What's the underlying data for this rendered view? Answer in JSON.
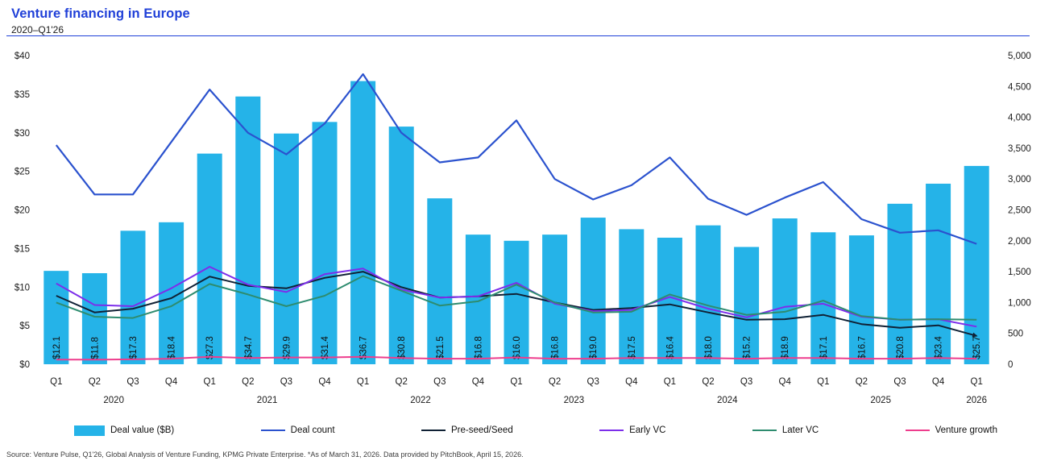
{
  "header": {
    "title": "Venture financing in Europe",
    "subtitle": "2020–Q1'26"
  },
  "source_note": "Source: Venture Pulse, Q1'26, Global Analysis of Venture Funding, KPMG Private Enterprise. *As of March 31, 2026. Data provided by PitchBook, April 15, 2026.",
  "colors": {
    "title_blue": "#2040d8",
    "bar_cyan": "#25b3e8",
    "deal_count_blue": "#2b52ce",
    "pre_seed_dark": "#102135",
    "early_vc_purple": "#7d2eea",
    "later_vc_teal": "#2e8c6f",
    "venture_growth_pink": "#ee3d8d",
    "axis_text": "#1a1a1a"
  },
  "chart_data": {
    "type": "bar+line combo",
    "title": "Venture financing in Europe",
    "subtitle": "2020–Q1'26",
    "categories": [
      "Q1",
      "Q2",
      "Q3",
      "Q4",
      "Q1",
      "Q2",
      "Q3",
      "Q4",
      "Q1",
      "Q2",
      "Q3",
      "Q4",
      "Q1",
      "Q2",
      "Q3",
      "Q4",
      "Q1",
      "Q2",
      "Q3",
      "Q4",
      "Q1",
      "Q2",
      "Q3",
      "Q4",
      "Q1"
    ],
    "year_groups": [
      {
        "label": "2020",
        "count": 4
      },
      {
        "label": "2021",
        "count": 4
      },
      {
        "label": "2022",
        "count": 4
      },
      {
        "label": "2023",
        "count": 4
      },
      {
        "label": "2024",
        "count": 4
      },
      {
        "label": "2025",
        "count": 4
      },
      {
        "label": "2026",
        "count": 1
      }
    ],
    "left_axis": {
      "min": 0,
      "max": 40,
      "ticks": [
        "$0",
        "$5",
        "$10",
        "$15",
        "$20",
        "$25",
        "$30",
        "$35",
        "$40"
      ]
    },
    "right_axis": {
      "min": 0,
      "max": 5000,
      "ticks": [
        "0",
        "500",
        "1,000",
        "1,500",
        "2,000",
        "2,500",
        "3,000",
        "3,500",
        "4,000",
        "4,500",
        "5,000"
      ]
    },
    "grid": false,
    "legend_position": "bottom",
    "bar_series": {
      "name": "Deal value ($B)",
      "axis": "left",
      "color": "#25b3e8",
      "values": [
        12.1,
        11.8,
        17.3,
        18.4,
        27.3,
        34.7,
        29.9,
        31.4,
        36.7,
        30.8,
        21.5,
        16.8,
        16.0,
        16.8,
        19.0,
        17.5,
        16.4,
        18.0,
        15.2,
        18.9,
        17.1,
        16.7,
        20.8,
        23.4,
        25.7
      ],
      "labels": [
        "$12.1",
        "$11.8",
        "$17.3",
        "$18.4",
        "$27.3",
        "$34.7",
        "$29.9",
        "$31.4",
        "$36.7",
        "$30.8",
        "$21.5",
        "$16.8",
        "$16.0",
        "$16.8",
        "$19.0",
        "$17.5",
        "$16.4",
        "$18.0",
        "$15.2",
        "$18.9",
        "$17.1",
        "$16.7",
        "$20.8",
        "$23.4",
        "$25.7"
      ]
    },
    "line_series": [
      {
        "name": "Deal count",
        "axis": "right",
        "color": "#2b52ce",
        "width": 2.2,
        "arrow_end": false,
        "values": [
          3550,
          2750,
          2750,
          3600,
          4450,
          3750,
          3400,
          3900,
          4700,
          3750,
          3270,
          3350,
          3950,
          3000,
          2670,
          2900,
          3350,
          2680,
          2420,
          2700,
          2950,
          2350,
          2130,
          2170,
          1950
        ]
      },
      {
        "name": "Pre-seed/Seed",
        "axis": "right",
        "color": "#102135",
        "width": 2,
        "arrow_end": true,
        "values": [
          1110,
          840,
          900,
          1070,
          1420,
          1270,
          1230,
          1400,
          1500,
          1250,
          1080,
          1100,
          1140,
          1000,
          880,
          910,
          970,
          840,
          720,
          730,
          800,
          650,
          590,
          630,
          460
        ]
      },
      {
        "name": "Early VC",
        "axis": "right",
        "color": "#7d2eea",
        "width": 2,
        "arrow_end": false,
        "values": [
          1310,
          960,
          940,
          1230,
          1580,
          1290,
          1170,
          1460,
          1550,
          1210,
          1080,
          1100,
          1320,
          980,
          860,
          880,
          1090,
          900,
          760,
          930,
          980,
          770,
          720,
          730,
          610
        ]
      },
      {
        "name": "Later VC",
        "axis": "right",
        "color": "#2e8c6f",
        "width": 2,
        "arrow_end": false,
        "values": [
          1000,
          770,
          750,
          940,
          1300,
          1130,
          940,
          1110,
          1430,
          1190,
          950,
          1020,
          1290,
          1000,
          840,
          850,
          1130,
          950,
          800,
          850,
          1030,
          780,
          720,
          730,
          720
        ]
      },
      {
        "name": "Venture growth",
        "axis": "right",
        "color": "#ee3d8d",
        "width": 2,
        "arrow_end": false,
        "values": [
          75,
          75,
          80,
          90,
          120,
          100,
          110,
          110,
          120,
          100,
          90,
          90,
          110,
          90,
          90,
          100,
          100,
          100,
          90,
          100,
          100,
          90,
          90,
          100,
          90
        ]
      }
    ],
    "legend": [
      {
        "label": "Deal value ($B)",
        "swatch": "bar",
        "color": "#25b3e8"
      },
      {
        "label": "Deal count",
        "swatch": "line",
        "color": "#2b52ce"
      },
      {
        "label": "Pre-seed/Seed",
        "swatch": "line",
        "color": "#102135"
      },
      {
        "label": "Early VC",
        "swatch": "line",
        "color": "#7d2eea"
      },
      {
        "label": "Later VC",
        "swatch": "line",
        "color": "#2e8c6f"
      },
      {
        "label": "Venture growth",
        "swatch": "line",
        "color": "#ee3d8d"
      }
    ]
  }
}
